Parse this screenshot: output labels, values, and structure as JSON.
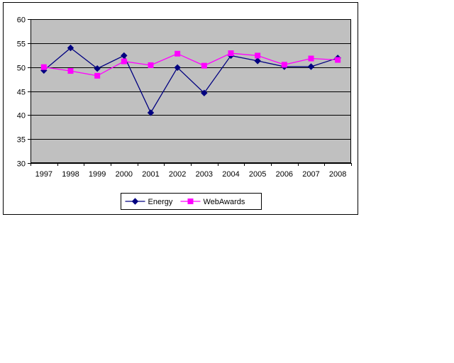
{
  "chart_data": {
    "type": "line",
    "title": "",
    "xlabel": "",
    "ylabel": "",
    "categories": [
      "1997",
      "1998",
      "1999",
      "2000",
      "2001",
      "2002",
      "2003",
      "2004",
      "2005",
      "2006",
      "2007",
      "2008"
    ],
    "series": [
      {
        "name": "Energy",
        "color": "#000080",
        "marker": "diamond",
        "values": [
          49.3,
          54.0,
          49.7,
          52.4,
          40.5,
          49.9,
          44.6,
          52.4,
          51.3,
          50.1,
          50.1,
          51.9
        ]
      },
      {
        "name": "WebAwards",
        "color": "#FF00FF",
        "marker": "square",
        "values": [
          50.0,
          49.2,
          48.2,
          51.2,
          50.4,
          52.8,
          50.3,
          52.9,
          52.4,
          50.5,
          51.8,
          51.5
        ]
      }
    ],
    "ylim": [
      30,
      60
    ],
    "yticks": [
      30,
      35,
      40,
      45,
      50,
      55,
      60
    ],
    "grid": "horizontal",
    "gridline_color": "#000000",
    "plot_bg_color": "#C0C0C0",
    "chart_bg_color": "#FFFFFF",
    "frame_border_color": "#000000",
    "axis_font_size": 11,
    "legend_position": "bottom-center",
    "legend_border_color": "#000000",
    "legend_bg_color": "#FFFFFF"
  }
}
